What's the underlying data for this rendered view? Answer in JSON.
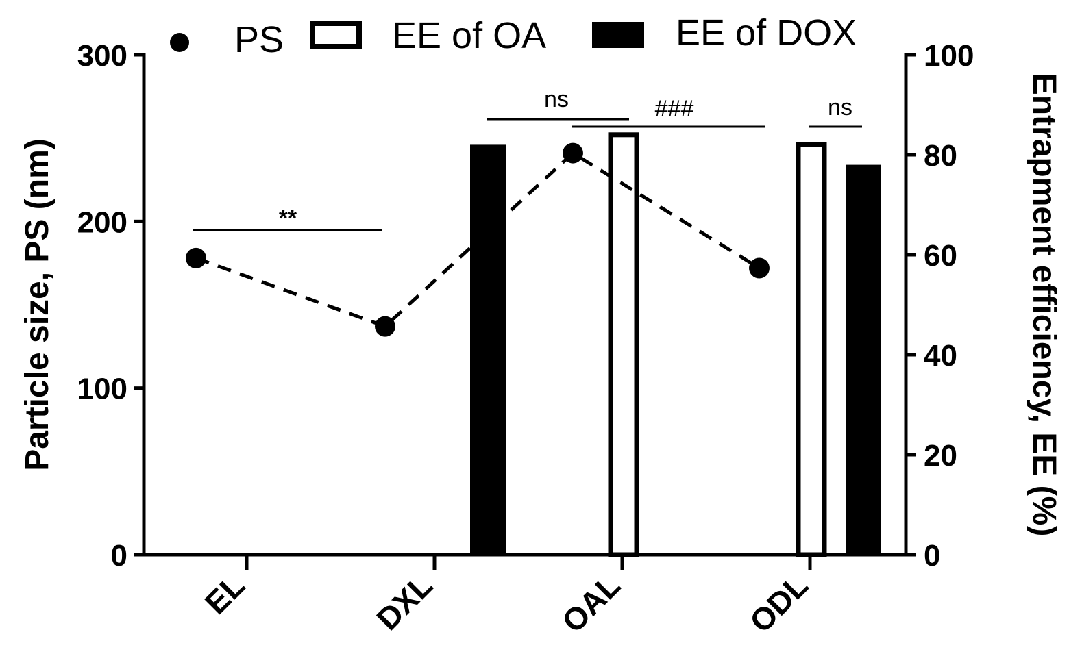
{
  "chart_data": {
    "type": "bar",
    "categories": [
      "EL",
      "DXL",
      "OAL",
      "ODL"
    ],
    "left_axis": {
      "label": "Particle size, PS (nm)",
      "ylim": [
        0,
        300
      ],
      "ticks": [
        "0",
        "100",
        "200",
        "300"
      ]
    },
    "right_axis": {
      "label": "Entrapment efficiency, EE (%)",
      "ylim": [
        0,
        100
      ],
      "ticks": [
        "0",
        "20",
        "40",
        "60",
        "80",
        "100"
      ]
    },
    "series": [
      {
        "name": "PS",
        "kind": "line-dashed-points",
        "axis": "left",
        "values": [
          178,
          137,
          241,
          172
        ]
      },
      {
        "name": "EE of OA",
        "kind": "bar-open",
        "axis": "right",
        "values": [
          null,
          null,
          84,
          82
        ]
      },
      {
        "name": "EE of DOX",
        "kind": "bar-filled",
        "axis": "right",
        "values": [
          null,
          82,
          null,
          78
        ]
      }
    ],
    "legend": {
      "placement": "top",
      "items": [
        "PS",
        "EE of OA",
        "EE of DOX"
      ]
    },
    "annotations": [
      {
        "text": "**",
        "span": [
          "EL",
          "DXL"
        ],
        "color": "#2a3b8f"
      },
      {
        "text": "ns",
        "span": [
          "DXL",
          "OAL"
        ],
        "color": "#000000"
      },
      {
        "text": "###",
        "span": [
          "DXL",
          "OAL"
        ],
        "color": "#000000"
      },
      {
        "text": "ns",
        "span": [
          "ODL",
          "ODL"
        ],
        "color": "#000000"
      }
    ],
    "grid": false
  }
}
